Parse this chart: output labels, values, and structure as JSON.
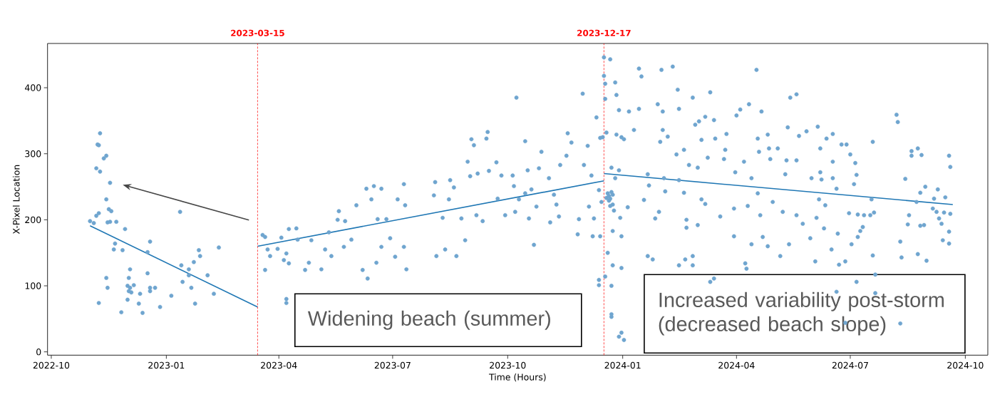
{
  "chart_data": {
    "type": "scatter",
    "xlabel": "Time (Hours)",
    "ylabel": "X-Pixel Location",
    "annotations": [
      "Widening beach (summer)",
      "Increased variability post-storm (decreased beach slope)"
    ],
    "xlim": [
      "2022-09-28",
      "2024-10-19"
    ],
    "ylim": [
      -5,
      467
    ],
    "xticks": [
      "2022-10",
      "2023-01",
      "2023-04",
      "2023-07",
      "2023-10",
      "2024-01",
      "2024-04",
      "2024-07",
      "2024-10"
    ],
    "yticks": [
      0,
      100,
      200,
      300,
      400
    ],
    "ref_lines": [
      {
        "axis": "x",
        "value": "2023-03-15",
        "label": "2023-03-15",
        "color": "#ff0000",
        "line_style": "dashed"
      },
      {
        "axis": "x",
        "value": "2023-12-17",
        "label": "2023-12-17",
        "color": "#ff0000",
        "line_style": "dashed"
      }
    ],
    "series": [
      {
        "color": "#6fa5cf",
        "marker": "circle",
        "x": [
          "2022-11-01",
          "2022-11-04",
          "2022-11-06",
          "2022-11-08",
          "2022-11-06",
          "2022-11-09",
          "2022-11-07",
          "2022-11-08",
          "2022-11-09",
          "2022-11-12",
          "2022-11-14",
          "2022-11-17",
          "2022-11-14",
          "2022-11-16",
          "2022-11-18",
          "2022-11-15",
          "2022-11-17",
          "2022-11-22",
          "2022-11-29",
          "2022-11-21",
          "2022-11-20",
          "2022-11-27",
          "2022-11-14",
          "2022-11-15",
          "2022-11-08",
          "2022-11-26",
          "2022-12-03",
          "2022-12-02",
          "2022-12-01",
          "2022-12-02",
          "2022-12-03",
          "2022-12-06",
          "2022-12-04",
          "2022-12-01",
          "2022-12-11",
          "2022-12-10",
          "2022-12-13",
          "2022-12-17",
          "2022-12-19",
          "2022-12-17",
          "2022-12-19",
          "2022-12-19",
          "2022-12-23",
          "2022-12-27",
          "2023-01-05",
          "2023-01-12",
          "2023-01-13",
          "2023-01-14",
          "2023-01-19",
          "2023-01-19",
          "2023-01-21",
          "2023-01-23",
          "2023-01-24",
          "2023-01-27",
          "2023-01-28",
          "2023-02-03",
          "2023-02-08",
          "2023-02-12",
          "2023-03-19",
          "2023-03-21",
          "2023-03-21",
          "2023-03-23",
          "2023-03-25",
          "2023-03-31",
          "2023-04-03",
          "2023-04-05",
          "2023-04-07",
          "2023-04-09",
          "2023-04-15",
          "2023-04-16",
          "2023-04-09",
          "2023-04-07",
          "2023-04-07",
          "2023-04-22",
          "2023-04-25",
          "2023-04-27",
          "2023-05-05",
          "2023-05-08",
          "2023-05-11",
          "2023-05-13",
          "2023-05-18",
          "2023-05-19",
          "2023-05-24",
          "2023-05-23",
          "2023-05-29",
          "2023-06-02",
          "2023-06-07",
          "2023-06-10",
          "2023-06-11",
          "2023-06-14",
          "2023-06-16",
          "2023-06-18",
          "2023-06-19",
          "2023-06-22",
          "2023-06-22",
          "2023-06-26",
          "2023-06-29",
          "2023-07-03",
          "2023-07-05",
          "2023-07-10",
          "2023-07-11",
          "2023-07-12",
          "2023-07-10",
          "2023-08-03",
          "2023-08-04",
          "2023-08-05",
          "2023-08-10",
          "2023-08-12",
          "2023-08-15",
          "2023-08-16",
          "2023-08-19",
          "2023-08-21",
          "2023-08-25",
          "2023-08-28",
          "2023-08-30",
          "2023-09-02",
          "2023-09-04",
          "2023-09-01",
          "2023-09-06",
          "2023-09-07",
          "2023-09-11",
          "2023-09-14",
          "2023-09-15",
          "2023-09-16",
          "2023-09-22",
          "2023-09-23",
          "2023-09-26",
          "2023-09-29",
          "2023-10-05",
          "2023-10-06",
          "2023-10-08",
          "2023-10-07",
          "2023-10-10",
          "2023-10-15",
          "2023-10-15",
          "2023-10-17",
          "2023-10-20",
          "2023-10-18",
          "2023-10-22",
          "2023-10-26",
          "2023-10-28",
          "2023-10-24",
          "2023-11-03",
          "2023-11-04",
          "2023-11-07",
          "2023-11-09",
          "2023-11-12",
          "2023-11-11",
          "2023-11-18",
          "2023-11-21",
          "2023-11-17",
          "2023-11-26",
          "2023-11-27",
          "2023-11-30",
          "2023-12-01",
          "2023-12-04",
          "2023-12-05",
          "2023-12-07",
          "2023-12-08",
          "2023-12-09",
          "2023-12-11",
          "2023-12-13",
          "2023-12-13",
          "2023-12-14",
          "2023-12-15",
          "2023-12-17",
          "2023-12-22",
          "2023-12-17",
          "2023-12-18",
          "2023-12-18",
          "2023-12-26",
          "2023-12-27",
          "2023-12-29",
          "2023-12-27",
          "2023-12-31",
          "2024-01-02",
          "2023-12-16",
          "2023-12-19",
          "2023-12-23",
          "2023-12-29",
          "2023-12-26",
          "2023-12-21",
          "2023-12-24",
          "2023-12-25",
          "2023-12-19",
          "2023-12-30",
          "2024-01-05",
          "2023-12-31",
          "2023-12-24",
          "2023-12-14",
          "2023-12-20",
          "2023-12-24",
          "2023-12-18",
          "2023-12-13",
          "2023-12-23",
          "2023-12-31",
          "2023-12-23",
          "2023-12-23",
          "2023-12-29",
          "2023-12-31",
          "2024-01-02",
          "2023-12-20",
          "2023-12-21",
          "2023-12-22",
          "2023-12-23",
          "2023-12-22",
          "2023-12-24",
          "2024-01-06",
          "2024-01-10",
          "2024-01-14",
          "2024-01-16",
          "2024-01-14",
          "2024-01-21",
          "2024-01-22",
          "2024-01-18",
          "2024-01-21",
          "2024-01-25",
          "2024-01-27",
          "2024-01-29",
          "2024-02-01",
          "2024-02-02",
          "2024-01-31",
          "2024-02-02",
          "2024-01-30",
          "2024-02-03",
          "2024-02-04",
          "2024-02-06",
          "2024-02-10",
          "2024-02-13",
          "2024-02-14",
          "2024-02-15",
          "2024-02-15",
          "2024-02-15",
          "2024-02-19",
          "2024-02-19",
          "2024-02-20",
          "2024-02-21",
          "2024-02-21",
          "2024-02-23",
          "2024-02-26",
          "2024-02-26",
          "2024-02-26",
          "2024-02-28",
          "2024-03-01",
          "2024-03-01",
          "2024-03-02",
          "2024-03-04",
          "2024-03-07",
          "2024-03-04",
          "2024-03-07",
          "2024-03-09",
          "2024-03-11",
          "2024-03-11",
          "2024-03-14",
          "2024-03-14",
          "2024-03-15",
          "2024-03-19",
          "2024-03-22",
          "2024-03-23",
          "2024-03-24",
          "2024-03-30",
          "2024-03-31",
          "2024-04-01",
          "2024-04-04",
          "2024-03-30",
          "2024-04-07",
          "2024-04-08",
          "2024-04-09",
          "2024-04-10",
          "2024-04-11",
          "2024-04-13",
          "2024-04-13",
          "2024-04-17",
          "2024-04-18",
          "2024-04-18",
          "2024-04-19",
          "2024-04-20",
          "2024-04-21",
          "2024-04-22",
          "2024-04-26",
          "2024-04-27",
          "2024-04-26",
          "2024-04-28",
          "2024-04-30",
          "2024-05-04",
          "2024-05-06",
          "2024-05-08",
          "2024-05-10",
          "2024-05-11",
          "2024-05-12",
          "2024-05-14",
          "2024-05-13",
          "2024-05-19",
          "2024-05-19",
          "2024-05-19",
          "2024-05-21",
          "2024-05-24",
          "2024-05-27",
          "2024-05-30",
          "2024-05-31",
          "2024-06-04",
          "2024-06-05",
          "2024-06-06",
          "2024-06-07",
          "2024-06-07",
          "2024-06-08",
          "2024-06-03",
          "2024-06-10",
          "2024-06-11",
          "2024-06-12",
          "2024-06-16",
          "2024-06-17",
          "2024-06-17",
          "2024-06-17",
          "2024-06-20",
          "2024-06-20",
          "2024-06-21",
          "2024-06-22",
          "2024-06-24",
          "2024-06-27",
          "2024-06-28",
          "2024-06-30",
          "2024-07-01",
          "2024-07-02",
          "2024-07-04",
          "2024-07-05",
          "2024-07-06",
          "2024-07-06",
          "2024-07-07",
          "2024-07-07",
          "2024-07-09",
          "2024-07-11",
          "2024-07-12",
          "2024-07-17",
          "2024-07-18",
          "2024-07-19",
          "2024-07-19",
          "2024-07-20",
          "2024-07-21",
          "2024-07-21",
          "2024-08-07",
          "2024-08-08",
          "2024-08-10",
          "2024-08-10",
          "2024-08-11",
          "2024-08-14",
          "2024-08-16",
          "2024-08-17",
          "2024-08-19",
          "2024-08-24",
          "2024-08-19",
          "2024-08-27",
          "2024-08-23",
          "2024-08-26",
          "2024-08-24",
          "2024-08-26",
          "2024-08-30",
          "2024-08-31",
          "2024-08-29",
          "2024-09-06",
          "2024-09-05",
          "2024-09-09",
          "2024-09-08",
          "2024-09-10",
          "2024-09-12",
          "2024-09-13",
          "2024-09-14",
          "2024-09-15",
          "2024-09-18",
          "2024-09-18",
          "2024-09-18",
          "2024-09-19",
          "2024-09-19",
          "2024-06-27"
        ],
        "values": [
          198,
          195,
          206,
          210,
          278,
          273,
          314,
          313,
          331,
          293,
          297,
          256,
          231,
          216,
          213,
          196,
          197,
          197,
          186,
          164,
          155,
          154,
          112,
          97,
          74,
          60,
          125,
          112,
          100,
          92,
          97,
          101,
          90,
          79,
          88,
          73,
          59,
          119,
          167,
          151,
          97,
          92,
          97,
          68,
          85,
          212,
          131,
          106,
          125,
          116,
          97,
          136,
          73,
          154,
          145,
          116,
          88,
          158,
          177,
          174,
          124,
          155,
          145,
          156,
          173,
          139,
          149,
          186,
          187,
          170,
          134,
          80,
          74,
          124,
          135,
          169,
          125,
          155,
          181,
          145,
          200,
          213,
          198,
          159,
          170,
          222,
          124,
          247,
          111,
          231,
          251,
          135,
          201,
          247,
          159,
          201,
          172,
          144,
          231,
          254,
          222,
          125,
          159,
          237,
          257,
          145,
          203,
          155,
          231,
          260,
          249,
          145,
          202,
          169,
          288,
          322,
          313,
          266,
          207,
          270,
          198,
          323,
          333,
          274,
          287,
          232,
          267,
          207,
          267,
          251,
          385,
          212,
          231,
          240,
          319,
          275,
          246,
          202,
          162,
          278,
          303,
          220,
          263,
          196,
          238,
          223,
          283,
          205,
          331,
          317,
          297,
          178,
          201,
          391,
          283,
          312,
          220,
          267,
          175,
          202,
          355,
          101,
          245,
          324,
          227,
          446,
          443,
          418,
          406,
          383,
          408,
          389,
          366,
          329,
          325,
          322,
          325,
          332,
          279,
          275,
          263,
          229,
          223,
          214,
          233,
          203,
          219,
          175,
          183,
          175,
          150,
          131,
          114,
          109,
          100,
          127,
          57,
          53,
          23,
          29,
          18,
          240,
          236,
          221,
          242,
          232,
          238,
          364,
          336,
          429,
          417,
          368,
          269,
          252,
          230,
          145,
          140,
          202,
          375,
          427,
          364,
          318,
          336,
          212,
          263,
          243,
          326,
          432,
          299,
          397,
          368,
          260,
          131,
          241,
          306,
          140,
          200,
          188,
          283,
          385,
          145,
          131,
          344,
          279,
          192,
          349,
          231,
          356,
          321,
          224,
          294,
          393,
          106,
          111,
          351,
          323,
          205,
          292,
          306,
          330,
          217,
          272,
          358,
          367,
          175,
          288,
          134,
          126,
          221,
          375,
          263,
          163,
          427,
          323,
          240,
          303,
          207,
          364,
          174,
          329,
          308,
          160,
          292,
          227,
          308,
          145,
          212,
          269,
          290,
          340,
          385,
          163,
          207,
          390,
          290,
          327,
          194,
          334,
          172,
          263,
          203,
          341,
          231,
          308,
          272,
          261,
          137,
          187,
          222,
          323,
          155,
          330,
          288,
          263,
          91,
          247,
          179,
          132,
          314,
          137,
          314,
          210,
          299,
          163,
          254,
          286,
          106,
          268,
          208,
          174,
          183,
          189,
          207,
          207,
          231,
          318,
          146,
          211,
          117,
          89,
          359,
          348,
          167,
          43,
          143,
          262,
          193,
          207,
          304,
          308,
          297,
          298,
          227,
          191,
          148,
          241,
          250,
          138,
          192,
          232,
          217,
          246,
          212,
          202,
          194,
          169,
          211,
          234,
          182,
          164,
          297,
          280,
          209,
          44
        ]
      },
      {
        "type": "line",
        "color": "#1f77b4",
        "x": [
          "2022-11-01",
          "2023-03-15"
        ],
        "values": [
          191,
          68
        ]
      },
      {
        "type": "line",
        "color": "#1f77b4",
        "x": [
          "2023-03-15",
          "2023-12-17"
        ],
        "values": [
          160,
          259
        ]
      },
      {
        "type": "line",
        "color": "#1f77b4",
        "x": [
          "2023-12-17",
          "2024-09-21"
        ],
        "values": [
          270,
          223
        ]
      }
    ]
  }
}
